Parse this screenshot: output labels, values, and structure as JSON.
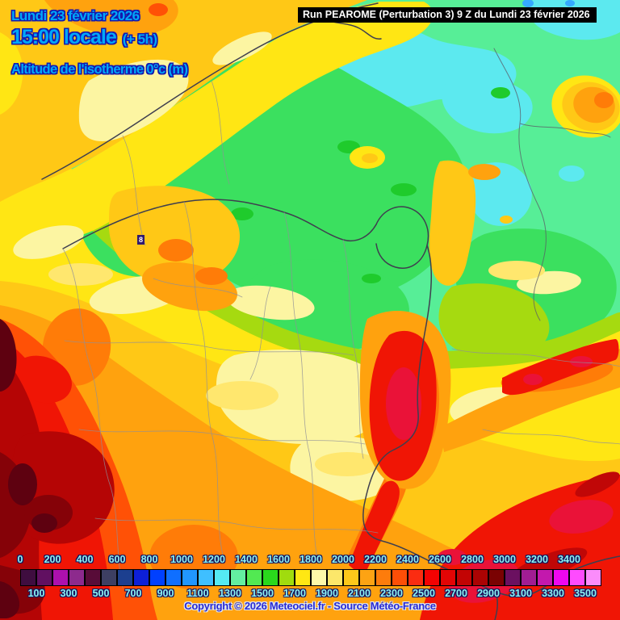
{
  "header": {
    "date": "Lundi 23 février 2026",
    "time": "15:00 locale",
    "offset": "(+ 5h)",
    "variable": "Altitude de l'isotherme 0°c (m)",
    "run": "Run PEAROME (Perturbation 3) 9 Z du Lundi 23 février 2026"
  },
  "map": {
    "marker_value": "8"
  },
  "legend": {
    "unit": "m",
    "labels_top": [
      "0",
      "200",
      "400",
      "600",
      "800",
      "1000",
      "1200",
      "1400",
      "1600",
      "1800",
      "2000",
      "2200",
      "2400",
      "2600",
      "2800",
      "3000",
      "3200",
      "3400"
    ],
    "labels_bottom": [
      "100",
      "300",
      "500",
      "700",
      "900",
      "1100",
      "1300",
      "1500",
      "1700",
      "1900",
      "2100",
      "2300",
      "2500",
      "2700",
      "2900",
      "3100",
      "3300",
      "3500"
    ],
    "swatches": [
      {
        "value": 0,
        "color": "#3f0d3f"
      },
      {
        "value": 100,
        "color": "#611061"
      },
      {
        "value": 200,
        "color": "#ad10ad"
      },
      {
        "value": 300,
        "color": "#8d2a8d"
      },
      {
        "value": 400,
        "color": "#580c38"
      },
      {
        "value": 500,
        "color": "#3d3f62"
      },
      {
        "value": 600,
        "color": "#1c3f8f"
      },
      {
        "value": 700,
        "color": "#0d1fd8"
      },
      {
        "value": 800,
        "color": "#0040ff"
      },
      {
        "value": 900,
        "color": "#0f6fff"
      },
      {
        "value": 1000,
        "color": "#2196ff"
      },
      {
        "value": 1100,
        "color": "#3fbfff"
      },
      {
        "value": 1200,
        "color": "#55eaf3"
      },
      {
        "value": 1300,
        "color": "#63efa0"
      },
      {
        "value": 1400,
        "color": "#52e952"
      },
      {
        "value": 1500,
        "color": "#2ad81c"
      },
      {
        "value": 1600,
        "color": "#a0dc0e"
      },
      {
        "value": 1700,
        "color": "#ffe713"
      },
      {
        "value": 1800,
        "color": "#fdf9a8"
      },
      {
        "value": 1900,
        "color": "#fce76a"
      },
      {
        "value": 2000,
        "color": "#fdc81a"
      },
      {
        "value": 2100,
        "color": "#fda313"
      },
      {
        "value": 2200,
        "color": "#fd7c0c"
      },
      {
        "value": 2300,
        "color": "#fd4e07"
      },
      {
        "value": 2400,
        "color": "#fb2c11"
      },
      {
        "value": 2500,
        "color": "#f40202"
      },
      {
        "value": 2600,
        "color": "#e30505"
      },
      {
        "value": 2700,
        "color": "#c20404"
      },
      {
        "value": 2800,
        "color": "#ab0303"
      },
      {
        "value": 2900,
        "color": "#7a0202"
      },
      {
        "value": 3000,
        "color": "#6b1060"
      },
      {
        "value": 3100,
        "color": "#a11d93"
      },
      {
        "value": 3200,
        "color": "#c318ad"
      },
      {
        "value": 3300,
        "color": "#ef07ef"
      },
      {
        "value": 3400,
        "color": "#fe4bfe"
      },
      {
        "value": 3500,
        "color": "#fb8cfb"
      }
    ]
  },
  "footer": {
    "copyright": "Copyright © 2026 Meteociel.fr - Source Météo-France"
  },
  "style_colors": {
    "title_text": "#00a8f8",
    "title_outline": "#1518ae",
    "legend_label": "#8df3f3",
    "copyright_text": "#2a2ad2",
    "banner_bg": "#000000",
    "banner_text": "#ffffff"
  }
}
